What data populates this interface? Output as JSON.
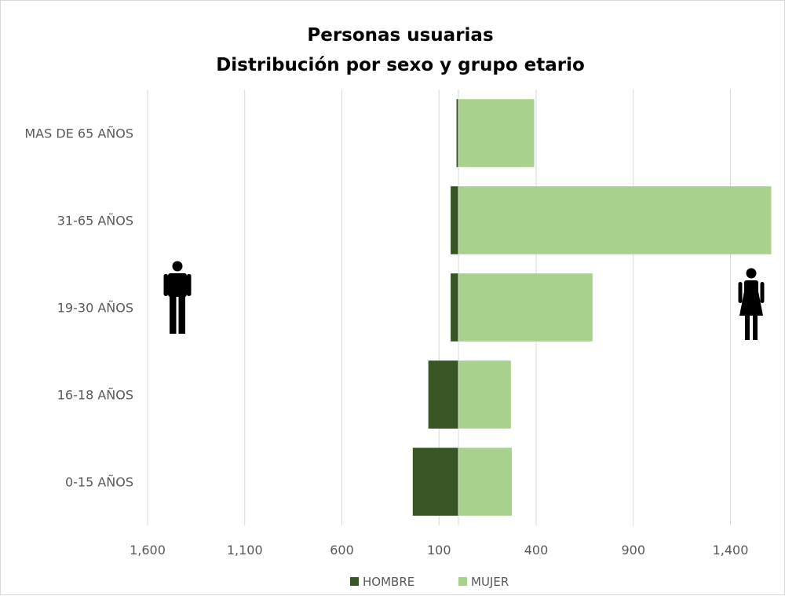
{
  "chart_data": {
    "type": "bar",
    "orientation": "horizontal",
    "title": [
      "Personas usuarias",
      "Distribución por sexo y grupo etario"
    ],
    "categories": [
      "MAS DE 65 AÑOS",
      "31-65 AÑOS",
      "19-30 AÑOS",
      "16-18 AÑOS",
      "0-15 AÑOS"
    ],
    "series": [
      {
        "name": "HOMBRE",
        "values": [
          -10,
          -40,
          -40,
          -155,
          -235
        ],
        "color": "#375623"
      },
      {
        "name": "MUJER",
        "values": [
          390,
          1610,
          690,
          270,
          275
        ],
        "color": "#a9d18e"
      }
    ],
    "xlim": [
      -1600,
      1600
    ],
    "x_ticks": [
      -1600,
      -1100,
      -600,
      -100,
      400,
      900,
      1400
    ],
    "x_tick_labels": [
      "1,600",
      "1,100",
      "600",
      "100",
      "400",
      "900",
      "1,400"
    ],
    "grid": true,
    "legend_position": "bottom",
    "icons": {
      "left": "male-person-icon",
      "right": "female-person-icon"
    }
  }
}
